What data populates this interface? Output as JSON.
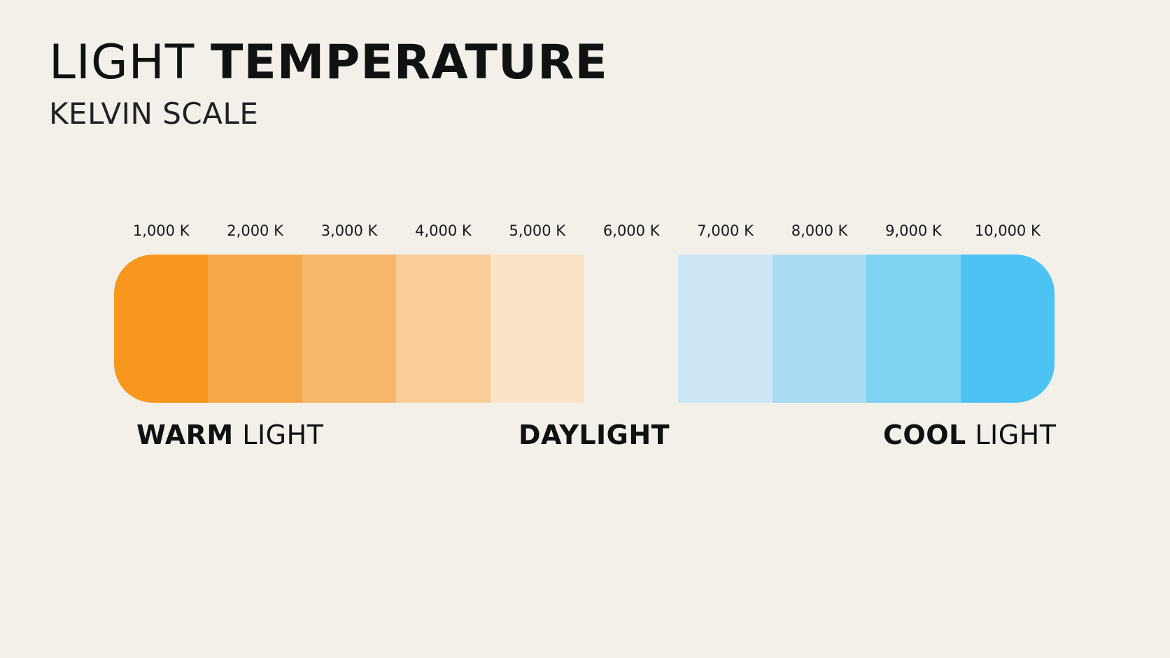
{
  "header": {
    "title_light": "LIGHT",
    "title_bold": "TEMPERATURE",
    "subtitle": "KELVIN SCALE"
  },
  "scale": {
    "ticks": [
      "1,000 K",
      "2,000 K",
      "3,000 K",
      "4,000 K",
      "5,000 K",
      "6,000 K",
      "7,000 K",
      "8,000 K",
      "9,000 K",
      "10,000 K"
    ],
    "swatch_colors": [
      "#f7971e",
      "#f7a84a",
      "#f8b86c",
      "#f9cd98",
      "#fbe3c6",
      "#f3f0ea",
      "#cce6f4",
      "#a9dcf3",
      "#80d3f3",
      "#4dc3f4"
    ]
  },
  "zones": {
    "warm": {
      "bold": "WARM",
      "light": "LIGHT"
    },
    "daylight": {
      "bold": "DAYLIGHT"
    },
    "cool": {
      "bold": "COOL",
      "light": "LIGHT"
    }
  }
}
